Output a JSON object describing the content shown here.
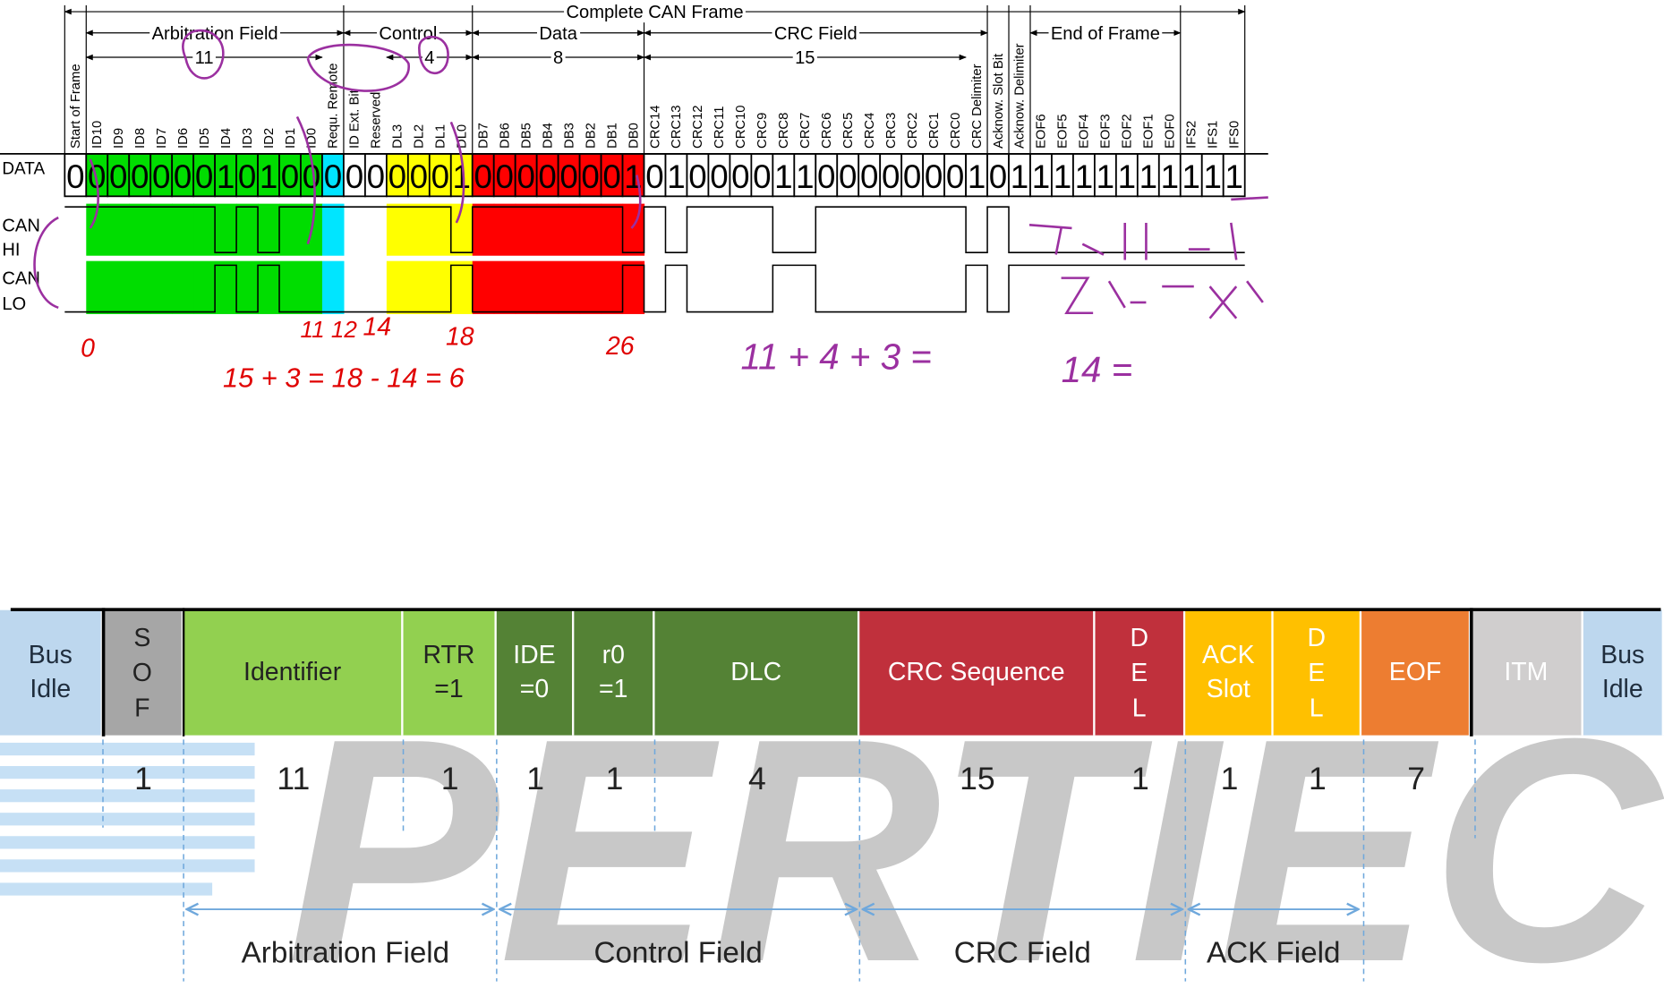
{
  "frame_diagram": {
    "title": "Complete CAN Frame",
    "spans": [
      {
        "label": "Arbitration Field"
      },
      {
        "label": "Control"
      },
      {
        "label": "Data"
      },
      {
        "label": "CRC Field"
      },
      {
        "label": "End of Frame"
      }
    ],
    "counts": [
      "11",
      "4",
      "8",
      "15"
    ],
    "row_label": "DATA",
    "signal_labels": [
      "CAN",
      "HI",
      "CAN",
      "LO"
    ],
    "bits": [
      {
        "label": "Start of Frame",
        "value": 0
      },
      {
        "label": "ID10",
        "value": 0
      },
      {
        "label": "ID9",
        "value": 0
      },
      {
        "label": "ID8",
        "value": 0
      },
      {
        "label": "ID7",
        "value": 0
      },
      {
        "label": "ID6",
        "value": 0
      },
      {
        "label": "ID5",
        "value": 0
      },
      {
        "label": "ID4",
        "value": 1
      },
      {
        "label": "ID3",
        "value": 0
      },
      {
        "label": "ID2",
        "value": 1
      },
      {
        "label": "ID1",
        "value": 0
      },
      {
        "label": "ID0",
        "value": 0
      },
      {
        "label": "Requ. Remote",
        "value": 0
      },
      {
        "label": "ID Ext. Bit",
        "value": 0
      },
      {
        "label": "Reserved",
        "value": 0
      },
      {
        "label": "DL3",
        "value": 0
      },
      {
        "label": "DL2",
        "value": 0
      },
      {
        "label": "DL1",
        "value": 0
      },
      {
        "label": "DL0",
        "value": 1
      },
      {
        "label": "DB7",
        "value": 0
      },
      {
        "label": "DB6",
        "value": 0
      },
      {
        "label": "DB5",
        "value": 0
      },
      {
        "label": "DB4",
        "value": 0
      },
      {
        "label": "DB3",
        "value": 0
      },
      {
        "label": "DB2",
        "value": 0
      },
      {
        "label": "DB1",
        "value": 0
      },
      {
        "label": "DB0",
        "value": 1
      },
      {
        "label": "CRC14",
        "value": 0
      },
      {
        "label": "CRC13",
        "value": 1
      },
      {
        "label": "CRC12",
        "value": 0
      },
      {
        "label": "CRC11",
        "value": 0
      },
      {
        "label": "CRC10",
        "value": 0
      },
      {
        "label": "CRC9",
        "value": 0
      },
      {
        "label": "CRC8",
        "value": 1
      },
      {
        "label": "CRC7",
        "value": 1
      },
      {
        "label": "CRC6",
        "value": 0
      },
      {
        "label": "CRC5",
        "value": 0
      },
      {
        "label": "CRC4",
        "value": 0
      },
      {
        "label": "CRC3",
        "value": 0
      },
      {
        "label": "CRC2",
        "value": 0
      },
      {
        "label": "CRC1",
        "value": 0
      },
      {
        "label": "CRC0",
        "value": 0
      },
      {
        "label": "CRC Delimiter",
        "value": 1
      },
      {
        "label": "Acknow. Slot Bit",
        "value": 0
      },
      {
        "label": "Acknow. Delimiter",
        "value": 1
      },
      {
        "label": "EOF6",
        "value": 1
      },
      {
        "label": "EOF5",
        "value": 1
      },
      {
        "label": "EOF4",
        "value": 1
      },
      {
        "label": "EOF3",
        "value": 1
      },
      {
        "label": "EOF2",
        "value": 1
      },
      {
        "label": "EOF1",
        "value": 1
      },
      {
        "label": "EOF0",
        "value": 1
      },
      {
        "label": "IFS2",
        "value": 1
      },
      {
        "label": "IFS1",
        "value": 1
      },
      {
        "label": "IFS0",
        "value": 1
      }
    ]
  },
  "annotations": [
    "0",
    "11 12",
    "14",
    "18",
    "26",
    "15 + 3 = 18 - 14 = 6",
    "11 + 4 + 3 =",
    "14 ="
  ],
  "field_diagram": {
    "watermark": "PERTIEC",
    "fields": [
      {
        "label": "Bus Idle",
        "bits": null,
        "color": "#bdd7ee",
        "text_color": "#1f2d3d"
      },
      {
        "label": "SOF",
        "bits": 1,
        "color": "#a6a6a6",
        "text_color": "#222222"
      },
      {
        "label": "Identifier",
        "bits": 11,
        "color": "#92d050",
        "text_color": "#222222"
      },
      {
        "label": "RTR =1",
        "bits": 1,
        "color": "#92d050",
        "text_color": "#222222"
      },
      {
        "label": "IDE =0",
        "bits": 1,
        "color": "#548235",
        "text_color": "#ffffff"
      },
      {
        "label": "r0 =1",
        "bits": 1,
        "color": "#548235",
        "text_color": "#ffffff"
      },
      {
        "label": "DLC",
        "bits": 4,
        "color": "#548235",
        "text_color": "#ffffff"
      },
      {
        "label": "CRC Sequence",
        "bits": 15,
        "color": "#c0303c",
        "text_color": "#ffffff"
      },
      {
        "label": "DEL",
        "bits": 1,
        "color": "#c0303c",
        "text_color": "#ffffff"
      },
      {
        "label": "ACK Slot",
        "bits": 1,
        "color": "#ffc000",
        "text_color": "#ffffff"
      },
      {
        "label": "DEL",
        "bits": 1,
        "color": "#ffc000",
        "text_color": "#ffffff"
      },
      {
        "label": "EOF",
        "bits": 7,
        "color": "#ed7d31",
        "text_color": "#ffffff"
      },
      {
        "label": "ITM",
        "bits": null,
        "color": "#d0cece",
        "text_color": "#ffffff"
      },
      {
        "label": "Bus Idle",
        "bits": null,
        "color": "#bdd7ee",
        "text_color": "#1f2d3d"
      }
    ],
    "groups": [
      "Arbitration Field",
      "Control Field",
      "CRC Field",
      "ACK Field"
    ]
  }
}
